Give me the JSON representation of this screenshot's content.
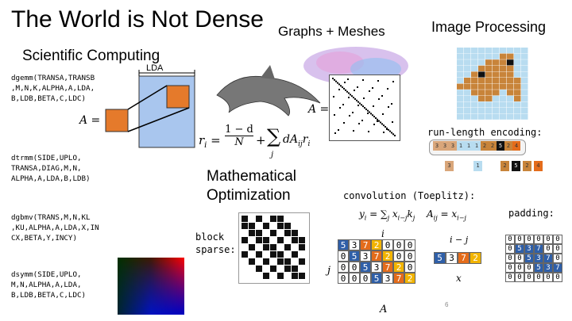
{
  "title": "The World is Not Dense",
  "sections": {
    "scientific": "Scientific Computing",
    "graphs": "Graphs + Meshes",
    "image": "Image Processing",
    "optimization_line1": "Mathematical",
    "optimization_line2": "Optimization"
  },
  "blas": {
    "dgemm": "dgemm(TRANSA,TRANSB\n,M,N,K,ALPHA,A,LDA,\nB,LDB,BETA,C,LDC)",
    "dtrmm": "dtrmm(SIDE,UPLO,\nTRANSA,DIAG,M,N,\nALPHA,A,LDA,B,LDB)",
    "dgbmv": "dgbmv(TRANS,M,N,KL\n,KU,ALPHA,A,LDA,X,IN\nCX,BETA,Y,INCY)",
    "dsymm": "dsymm(SIDE,UPLO,\nM,N,ALPHA,A,LDA,\nB,LDB,BETA,C,LDC)"
  },
  "lda_label": "LDA",
  "a_eq": "A =",
  "pagerank": {
    "ri": "r",
    "eq": "=",
    "num": "1 − d",
    "den": "N",
    "plus": "+",
    "sum": "∑",
    "sub": "j",
    "term": "dA",
    "term_sub": "ij",
    "term_r": "r"
  },
  "rle_label": "run-length encoding:",
  "rle_top": [
    "3",
    "3",
    "3",
    "1",
    "1",
    "1",
    "2",
    "2",
    "5",
    "2",
    "4"
  ],
  "rle_bottom": [
    "3",
    "1",
    "2",
    "5",
    "2",
    "4"
  ],
  "block_label_1": "block",
  "block_label_2": "sparse:",
  "conv": {
    "title": "convolution (Toeplitz):",
    "eq1": "y",
    "eq1_rest": " = ∑",
    "eq2": "A",
    "eq2_rest": " = x",
    "padding": "padding:",
    "i_label": "i",
    "j_label": "j",
    "imj": "i − j",
    "x_label": "x",
    "A_label": "A"
  },
  "toeplitz_rows": [
    [
      "5",
      "3",
      "7",
      "2",
      "0",
      "0",
      "0"
    ],
    [
      "0",
      "5",
      "3",
      "7",
      "2",
      "0",
      "0"
    ],
    [
      "0",
      "0",
      "5",
      "3",
      "7",
      "2",
      "0"
    ],
    [
      "0",
      "0",
      "0",
      "5",
      "3",
      "7",
      "2"
    ]
  ],
  "kernel": [
    "5",
    "3",
    "7",
    "2"
  ],
  "padding_rows": [
    [
      "0",
      "0",
      "0",
      "0",
      "0",
      "0"
    ],
    [
      "0",
      "5",
      "3",
      "7",
      "0",
      "0"
    ],
    [
      "0",
      "0",
      "5",
      "3",
      "7",
      "0"
    ],
    [
      "0",
      "0",
      "0",
      "5",
      "3",
      "7"
    ],
    [
      "0",
      "0",
      "0",
      "0",
      "0",
      "0"
    ]
  ],
  "page_number": "6"
}
